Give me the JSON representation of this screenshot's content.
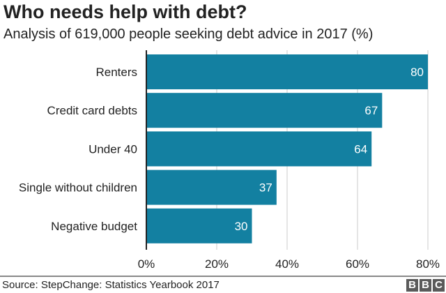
{
  "chart_data": {
    "type": "bar",
    "orientation": "horizontal",
    "title": "Who needs help with debt?",
    "subtitle": "Analysis of 619,000 people seeking debt advice in 2017 (%)",
    "categories": [
      "Renters",
      "Credit card debts",
      "Under 40",
      "Single without children",
      "Negative budget"
    ],
    "values": [
      80,
      67,
      64,
      37,
      30
    ],
    "xlim": [
      0,
      80
    ],
    "ticks": [
      0,
      20,
      40,
      60,
      80
    ],
    "tick_labels": [
      "0%",
      "20%",
      "40%",
      "60%",
      "80%"
    ],
    "grid": true,
    "bar_color": "#1380A1",
    "source": "Source: StepChange: Statistics Yearbook 2017"
  },
  "logo": "BBC"
}
